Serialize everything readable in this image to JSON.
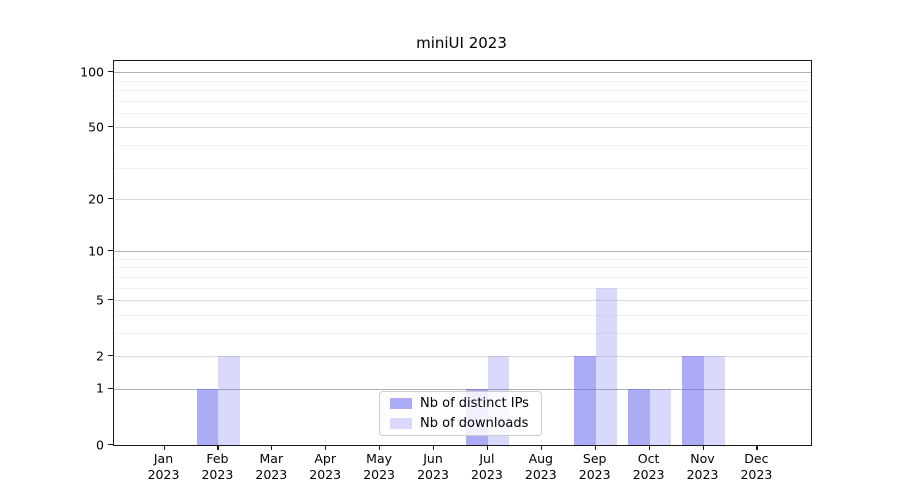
{
  "chart_data": {
    "type": "bar",
    "title": "miniUI 2023",
    "categories": [
      "Jan",
      "Feb",
      "Mar",
      "Apr",
      "May",
      "Jun",
      "Jul",
      "Aug",
      "Sep",
      "Oct",
      "Nov",
      "Dec"
    ],
    "category_year": "2023",
    "series": [
      {
        "name": "Nb of distinct IPs",
        "base_color": "#6666ee",
        "alpha": 0.55,
        "values": [
          0,
          1,
          0,
          0,
          0,
          0,
          1,
          0,
          2,
          1,
          2,
          0
        ]
      },
      {
        "name": "Nb of downloads",
        "base_color": "#6666ee",
        "alpha": 0.25,
        "values": [
          0,
          2,
          0,
          0,
          0,
          0,
          2,
          0,
          6,
          1,
          2,
          0
        ]
      }
    ],
    "y_tick_labels": [
      "0",
      "1",
      "2",
      "5",
      "10",
      "20",
      "50",
      "100"
    ],
    "y_ticks": [
      0,
      1,
      2,
      5,
      10,
      20,
      50,
      100
    ],
    "y_minor_gridlines": [
      3,
      4,
      6,
      7,
      8,
      9,
      30,
      40,
      60,
      70,
      80,
      90
    ],
    "y_emphasized_gridlines": [
      1,
      10,
      100
    ],
    "scale": "log1p",
    "ylim": [
      0,
      110
    ],
    "grid": true,
    "legend_position": "lower center",
    "colors": {
      "axis": "#1a1a1a",
      "grid_major": "#dcdcdc",
      "grid_emphasized": "#b0b0b0",
      "grid_minor": "#f0f0f0",
      "background": "#ffffff"
    }
  }
}
